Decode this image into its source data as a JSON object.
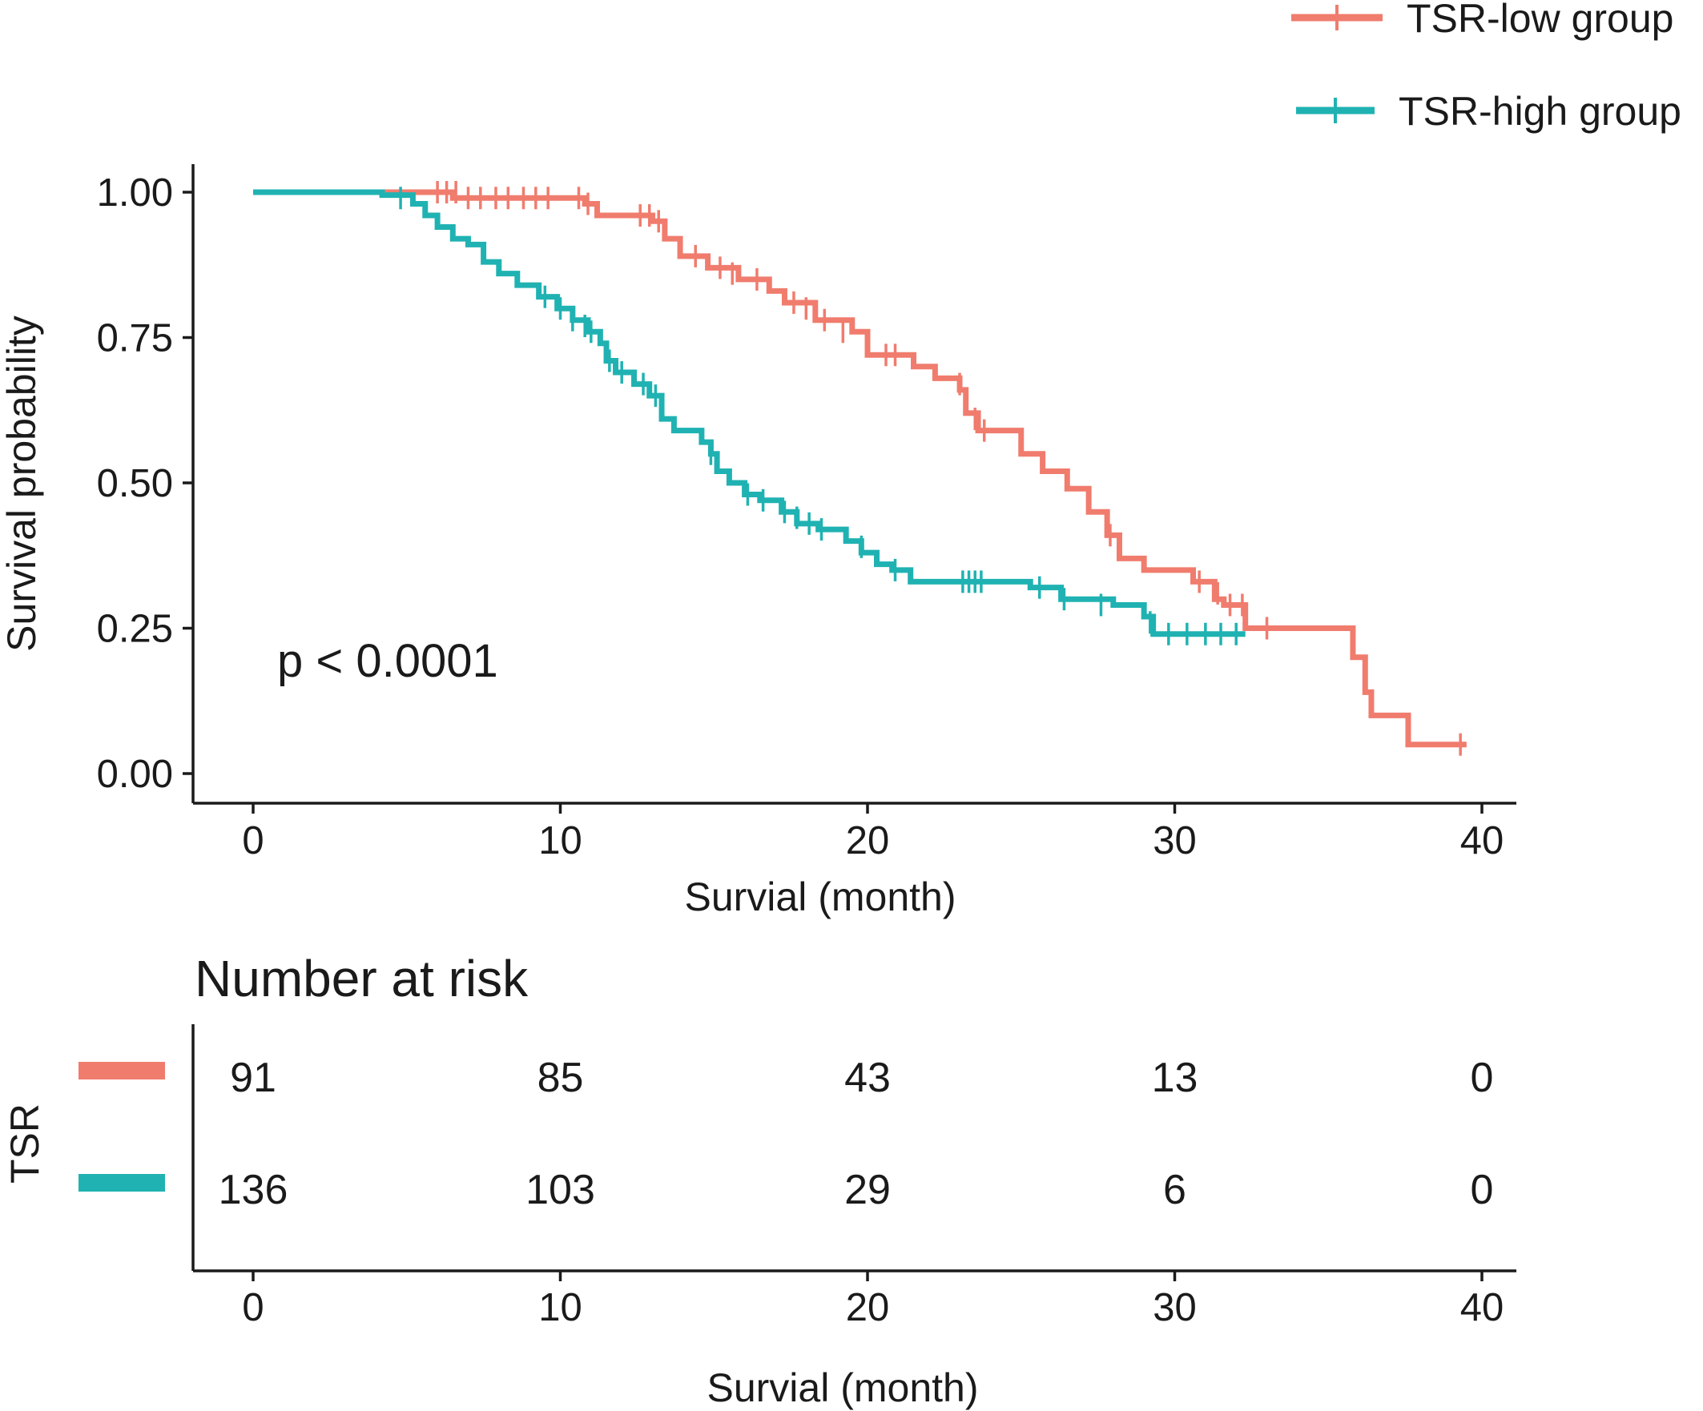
{
  "chart_data": {
    "type": "line",
    "subtype": "kaplan-meier",
    "ylabel": "Survival probability",
    "xlabel": "Survial (month)",
    "xlim": [
      0,
      40
    ],
    "ylim": [
      0,
      1
    ],
    "x_ticks": [
      "0",
      "10",
      "20",
      "30",
      "40"
    ],
    "y_ticks": [
      "0.00",
      "0.25",
      "0.50",
      "0.75",
      "1.00"
    ],
    "grid": false,
    "legend_position": "top-right",
    "annotation": "p < 0.0001",
    "series": [
      {
        "name": "TSR-low group",
        "color": "#F07C6E",
        "steps": [
          [
            0,
            1.0
          ],
          [
            6.5,
            0.99
          ],
          [
            10.8,
            0.98
          ],
          [
            11.2,
            0.96
          ],
          [
            13.0,
            0.95
          ],
          [
            13.4,
            0.92
          ],
          [
            13.9,
            0.89
          ],
          [
            14.8,
            0.87
          ],
          [
            15.8,
            0.85
          ],
          [
            16.8,
            0.83
          ],
          [
            17.3,
            0.81
          ],
          [
            18.3,
            0.78
          ],
          [
            19.5,
            0.76
          ],
          [
            20.0,
            0.72
          ],
          [
            21.5,
            0.7
          ],
          [
            22.2,
            0.68
          ],
          [
            23.0,
            0.66
          ],
          [
            23.2,
            0.62
          ],
          [
            23.6,
            0.59
          ],
          [
            25.0,
            0.55
          ],
          [
            25.7,
            0.52
          ],
          [
            26.5,
            0.49
          ],
          [
            27.2,
            0.45
          ],
          [
            27.8,
            0.41
          ],
          [
            28.2,
            0.37
          ],
          [
            29.0,
            0.35
          ],
          [
            30.6,
            0.33
          ],
          [
            31.3,
            0.3
          ],
          [
            31.6,
            0.29
          ],
          [
            32.3,
            0.25
          ],
          [
            35.8,
            0.2
          ],
          [
            36.2,
            0.14
          ],
          [
            36.4,
            0.1
          ],
          [
            37.6,
            0.05
          ],
          [
            39.5,
            0.05
          ]
        ],
        "censors": [
          [
            6.0,
            1.0
          ],
          [
            6.3,
            1.0
          ],
          [
            6.6,
            1.0
          ],
          [
            7.0,
            0.99
          ],
          [
            7.4,
            0.99
          ],
          [
            7.9,
            0.99
          ],
          [
            8.3,
            0.99
          ],
          [
            8.8,
            0.99
          ],
          [
            9.2,
            0.99
          ],
          [
            9.6,
            0.99
          ],
          [
            10.6,
            0.99
          ],
          [
            10.9,
            0.98
          ],
          [
            12.6,
            0.96
          ],
          [
            12.9,
            0.96
          ],
          [
            13.2,
            0.95
          ],
          [
            14.4,
            0.89
          ],
          [
            15.2,
            0.87
          ],
          [
            15.6,
            0.86
          ],
          [
            16.4,
            0.85
          ],
          [
            17.6,
            0.81
          ],
          [
            18.0,
            0.8
          ],
          [
            18.6,
            0.78
          ],
          [
            19.2,
            0.76
          ],
          [
            20.6,
            0.72
          ],
          [
            20.9,
            0.72
          ],
          [
            23.0,
            0.67
          ],
          [
            23.2,
            0.64
          ],
          [
            23.5,
            0.61
          ],
          [
            23.8,
            0.59
          ],
          [
            27.9,
            0.41
          ],
          [
            30.8,
            0.33
          ],
          [
            31.4,
            0.31
          ],
          [
            31.8,
            0.29
          ],
          [
            32.2,
            0.29
          ],
          [
            33.0,
            0.25
          ],
          [
            39.3,
            0.05
          ]
        ]
      },
      {
        "name": "TSR-high group",
        "color": "#20B2B2",
        "steps": [
          [
            0,
            1.0
          ],
          [
            4.2,
            0.995
          ],
          [
            5.2,
            0.98
          ],
          [
            5.6,
            0.96
          ],
          [
            6.0,
            0.94
          ],
          [
            6.5,
            0.92
          ],
          [
            7.0,
            0.91
          ],
          [
            7.5,
            0.88
          ],
          [
            8.0,
            0.86
          ],
          [
            8.6,
            0.84
          ],
          [
            9.3,
            0.82
          ],
          [
            9.9,
            0.8
          ],
          [
            10.4,
            0.78
          ],
          [
            10.9,
            0.76
          ],
          [
            11.3,
            0.74
          ],
          [
            11.5,
            0.71
          ],
          [
            11.8,
            0.69
          ],
          [
            12.4,
            0.67
          ],
          [
            12.9,
            0.65
          ],
          [
            13.3,
            0.61
          ],
          [
            13.7,
            0.59
          ],
          [
            14.6,
            0.57
          ],
          [
            14.9,
            0.55
          ],
          [
            15.1,
            0.52
          ],
          [
            15.5,
            0.5
          ],
          [
            16.0,
            0.48
          ],
          [
            16.5,
            0.47
          ],
          [
            17.2,
            0.45
          ],
          [
            17.7,
            0.43
          ],
          [
            18.4,
            0.42
          ],
          [
            19.3,
            0.4
          ],
          [
            19.8,
            0.38
          ],
          [
            20.3,
            0.36
          ],
          [
            20.8,
            0.35
          ],
          [
            21.4,
            0.33
          ],
          [
            23.0,
            0.33
          ],
          [
            25.3,
            0.32
          ],
          [
            26.3,
            0.3
          ],
          [
            28.0,
            0.29
          ],
          [
            29.0,
            0.27
          ],
          [
            29.3,
            0.24
          ],
          [
            32.3,
            0.24
          ]
        ],
        "censors": [
          [
            4.8,
            0.99
          ],
          [
            9.5,
            0.82
          ],
          [
            10.0,
            0.8
          ],
          [
            10.4,
            0.78
          ],
          [
            10.8,
            0.77
          ],
          [
            11.0,
            0.76
          ],
          [
            11.6,
            0.71
          ],
          [
            12.0,
            0.69
          ],
          [
            12.7,
            0.67
          ],
          [
            13.1,
            0.65
          ],
          [
            14.9,
            0.55
          ],
          [
            16.1,
            0.48
          ],
          [
            16.6,
            0.47
          ],
          [
            17.3,
            0.45
          ],
          [
            17.7,
            0.44
          ],
          [
            18.1,
            0.43
          ],
          [
            18.5,
            0.42
          ],
          [
            19.8,
            0.39
          ],
          [
            20.9,
            0.35
          ],
          [
            23.1,
            0.33
          ],
          [
            23.3,
            0.33
          ],
          [
            23.5,
            0.33
          ],
          [
            23.7,
            0.33
          ],
          [
            25.6,
            0.32
          ],
          [
            26.4,
            0.3
          ],
          [
            27.6,
            0.29
          ],
          [
            29.2,
            0.26
          ],
          [
            29.8,
            0.24
          ],
          [
            30.4,
            0.24
          ],
          [
            31.0,
            0.24
          ],
          [
            31.5,
            0.24
          ],
          [
            32.0,
            0.24
          ]
        ]
      }
    ]
  },
  "risk_table": {
    "title": "Number at risk",
    "strata_label": "TSR",
    "xlabel": "Survial (month)",
    "time_points": [
      "0",
      "10",
      "20",
      "30",
      "40"
    ],
    "rows": [
      {
        "name": "TSR-low group",
        "color": "#F07C6E",
        "counts": [
          "91",
          "85",
          "43",
          "13",
          "0"
        ]
      },
      {
        "name": "TSR-high group",
        "color": "#20B2B2",
        "counts": [
          "136",
          "103",
          "29",
          "6",
          "0"
        ]
      }
    ]
  }
}
